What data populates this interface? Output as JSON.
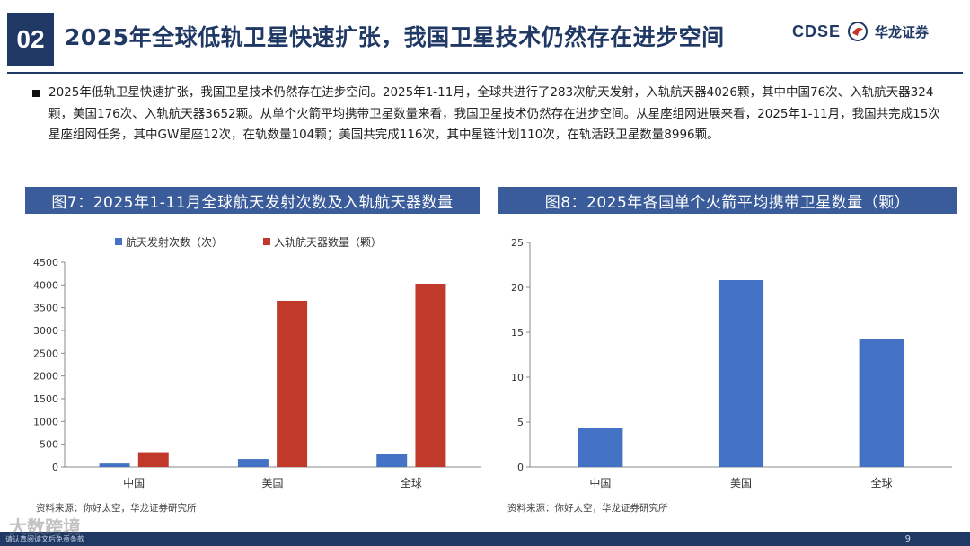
{
  "header": {
    "section_number": "02",
    "title": "2025年全球低轨卫星快速扩张，我国卫星技术仍然存在进步空间",
    "logo_en": "CDSE",
    "logo_cn": "华龙证券"
  },
  "summary": "2025年低轨卫星快速扩张，我国卫星技术仍然存在进步空间。2025年1-11月，全球共进行了283次航天发射，入轨航天器4026颗，其中中国76次、入轨航天器324颗，美国176次、入轨航天器3652颗。从单个火箭平均携带卫星数量来看，我国卫星技术仍然存在进步空间。从星座组网进展来看，2025年1-11月，我国共完成15次星座组网任务，其中GW星座12次，在轨数量104颗；美国共完成116次，其中星链计划110次，在轨活跃卫星数量8996颗。",
  "fig7": {
    "title": "图7：2025年1-11月全球航天发射次数及入轨航天器数量",
    "source": "资料来源：你好太空，华龙证券研究所"
  },
  "fig8": {
    "title": "图8：2025年各国单个火箭平均携带卫星数量（颗）",
    "source": "资料来源：你好太空，华龙证券研究所"
  },
  "footer": {
    "disclaimer": "请认真阅读文后免责条款",
    "page": "9",
    "watermark": "大数跨境"
  },
  "colors": {
    "navy": "#1f3864",
    "fig_title_bg": "#3b5c9a",
    "bar_blue": "#4472c4",
    "bar_red": "#c0392b"
  },
  "chart_data": [
    {
      "type": "bar",
      "categories": [
        "中国",
        "美国",
        "全球"
      ],
      "series": [
        {
          "name": "航天发射次数（次）",
          "values": [
            76,
            176,
            283
          ],
          "color": "#4472c4"
        },
        {
          "name": "入轨航天器数量（颗）",
          "values": [
            324,
            3652,
            4026
          ],
          "color": "#c0392b"
        }
      ],
      "ylim": [
        0,
        4500
      ],
      "yticks": [
        0,
        500,
        1000,
        1500,
        2000,
        2500,
        3000,
        3500,
        4000,
        4500
      ],
      "legend": "top",
      "grid": false
    },
    {
      "type": "bar",
      "categories": [
        "中国",
        "美国",
        "全球"
      ],
      "values": [
        4.3,
        20.8,
        14.2
      ],
      "color": "#4472c4",
      "ylim": [
        0,
        25
      ],
      "yticks": [
        0,
        5,
        10,
        15,
        20,
        25
      ],
      "grid": false
    }
  ]
}
